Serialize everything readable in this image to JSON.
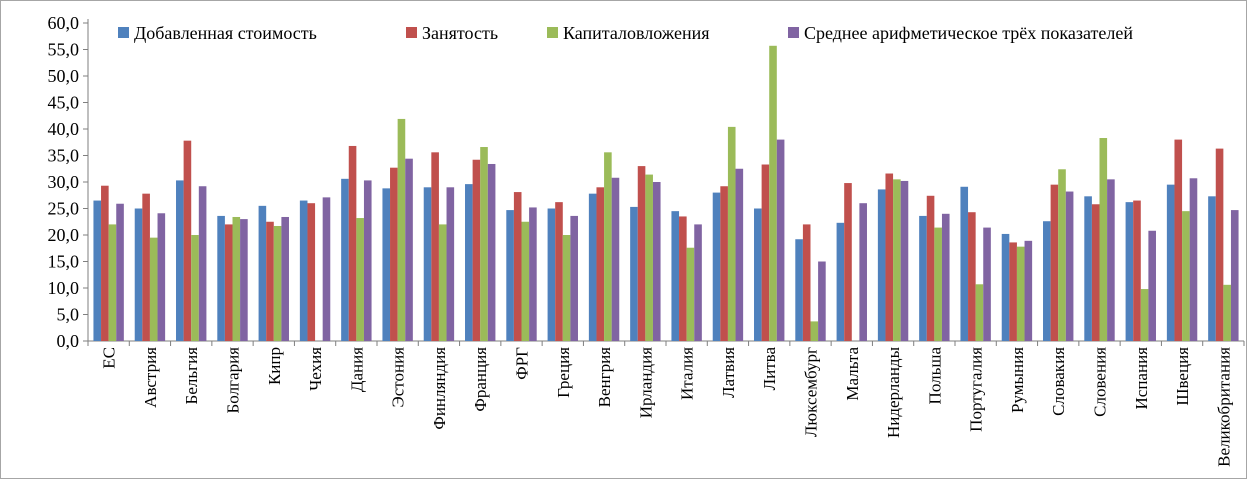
{
  "chart_data": {
    "type": "bar",
    "title": "",
    "xlabel": "",
    "ylabel": "",
    "ylim": [
      0,
      60
    ],
    "ytick_step": 5,
    "ytick_labels": [
      "0,0",
      "5,0",
      "10,0",
      "15,0",
      "20,0",
      "25,0",
      "30,0",
      "35,0",
      "40,0",
      "45,0",
      "50,0",
      "55,0",
      "60,0"
    ],
    "grid": false,
    "legend_position": "top",
    "categories": [
      "ЕС",
      "Австрия",
      "Бельгия",
      "Болгария",
      "Кипр",
      "Чехия",
      "Дания",
      "Эстония",
      "Финляндия",
      "Франция",
      "ФРГ",
      "Греция",
      "Венгрия",
      "Ирландия",
      "Италия",
      "Латвия",
      "Литва",
      "Люксембург",
      "Мальта",
      "Нидерланды",
      "Польша",
      "Португалия",
      "Румыния",
      "Словакия",
      "Словения",
      "Испания",
      "Швеция",
      "Великобритания"
    ],
    "series": [
      {
        "name": "Добавленная стоимость",
        "color": "#4f81bd",
        "values": [
          26.5,
          25.0,
          30.3,
          23.6,
          25.5,
          26.5,
          30.6,
          28.8,
          29.0,
          29.6,
          24.7,
          25.0,
          27.8,
          25.3,
          24.5,
          28.0,
          25.0,
          19.2,
          22.3,
          28.6,
          23.6,
          29.1,
          20.2,
          22.6,
          27.3,
          26.2,
          29.5,
          27.3
        ]
      },
      {
        "name": "Занятость",
        "color": "#c0504d",
        "values": [
          29.3,
          27.8,
          37.8,
          22.0,
          22.5,
          26.0,
          36.8,
          32.7,
          35.6,
          34.2,
          28.1,
          26.2,
          29.0,
          33.0,
          23.5,
          29.2,
          33.3,
          22.0,
          29.8,
          31.6,
          27.4,
          24.3,
          18.6,
          29.5,
          25.8,
          26.5,
          38.0,
          36.3
        ]
      },
      {
        "name": "Капиталовложения",
        "color": "#9bbb59",
        "values": [
          22.0,
          19.5,
          20.0,
          23.4,
          21.7,
          null,
          23.2,
          41.9,
          22.0,
          36.6,
          22.5,
          20.0,
          35.6,
          31.4,
          17.6,
          40.4,
          55.7,
          3.7,
          null,
          30.5,
          21.4,
          10.7,
          17.8,
          32.4,
          38.3,
          9.8,
          24.5,
          10.6
        ]
      },
      {
        "name": "Среднее арифметическое трёх показателей",
        "color": "#8064a2",
        "values": [
          25.9,
          24.1,
          29.2,
          23.0,
          23.4,
          27.1,
          30.3,
          34.4,
          29.0,
          33.4,
          25.2,
          23.6,
          30.8,
          30.0,
          22.0,
          32.5,
          38.0,
          15.0,
          26.0,
          30.2,
          24.0,
          21.4,
          18.9,
          28.2,
          30.5,
          20.8,
          30.7,
          24.7
        ]
      }
    ]
  }
}
